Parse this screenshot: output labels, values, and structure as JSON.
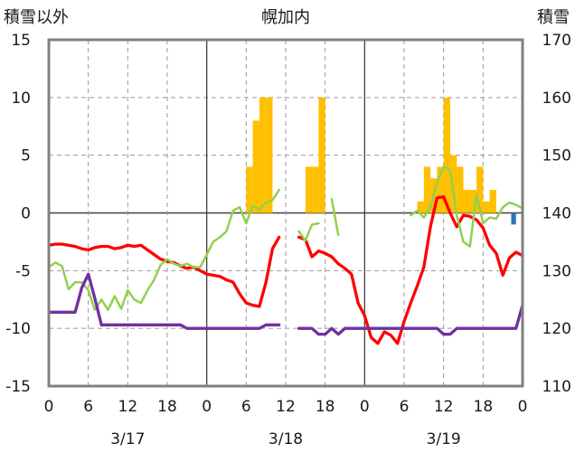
{
  "chart_data": {
    "type": "bar+line",
    "title": "幌加内",
    "left_axis_title": "積雪以外",
    "right_axis_title": "積雪",
    "left_ylim": [
      -15,
      15
    ],
    "left_ticks": [
      "15",
      "10",
      "5",
      "0",
      "-5",
      "-10",
      "-15"
    ],
    "right_ylim": [
      110,
      170
    ],
    "right_ticks": [
      "170",
      "160",
      "150",
      "140",
      "130",
      "120",
      "110"
    ],
    "xlim_hours": [
      0,
      72
    ],
    "x_tick_hours": [
      0,
      6,
      12,
      18,
      24,
      30,
      36,
      42,
      48,
      54,
      60,
      66,
      72
    ],
    "x_tick_labels": [
      "0",
      "6",
      "12",
      "18",
      "0",
      "6",
      "12",
      "18",
      "0",
      "6",
      "12",
      "18",
      "0"
    ],
    "date_labels": [
      {
        "text": "3/17",
        "hour": 12
      },
      {
        "text": "3/18",
        "hour": 36
      },
      {
        "text": "3/19",
        "hour": 60
      }
    ],
    "grid": true,
    "colors": {
      "precip_bar": "#FFC000",
      "temperature": "#FF0000",
      "wind_green": "#92D050",
      "purple": "#7030A0",
      "blue_bar": "#2E75B6",
      "frame": "#808080"
    },
    "bars_orange": [
      {
        "h": 31,
        "v": 4
      },
      {
        "h": 32,
        "v": 8
      },
      {
        "h": 33,
        "v": 10
      },
      {
        "h": 34,
        "v": 10
      },
      {
        "h": 40,
        "v": 4
      },
      {
        "h": 41,
        "v": 4
      },
      {
        "h": 42,
        "v": 10
      },
      {
        "h": 57,
        "v": 1
      },
      {
        "h": 58,
        "v": 4
      },
      {
        "h": 59,
        "v": 3
      },
      {
        "h": 60,
        "v": 4
      },
      {
        "h": 61,
        "v": 10
      },
      {
        "h": 62,
        "v": 5
      },
      {
        "h": 63,
        "v": 4
      },
      {
        "h": 64,
        "v": 2
      },
      {
        "h": 65,
        "v": 2
      },
      {
        "h": 66,
        "v": 4
      },
      {
        "h": 67,
        "v": 1
      },
      {
        "h": 68,
        "v": 2
      }
    ],
    "bars_blue": [
      {
        "h": 71,
        "v": -1
      }
    ],
    "series": [
      {
        "color_key": "temperature",
        "segments": [
          [
            [
              0,
              -2.8
            ],
            [
              1,
              -2.7
            ],
            [
              2,
              -2.7
            ],
            [
              3,
              -2.8
            ],
            [
              4,
              -2.9
            ],
            [
              5,
              -3.1
            ],
            [
              6,
              -3.2
            ],
            [
              7,
              -3.0
            ],
            [
              8,
              -2.9
            ],
            [
              9,
              -2.9
            ],
            [
              10,
              -3.1
            ],
            [
              11,
              -3.0
            ],
            [
              12,
              -2.8
            ],
            [
              13,
              -2.9
            ],
            [
              14,
              -2.8
            ],
            [
              15,
              -3.2
            ],
            [
              16,
              -3.6
            ],
            [
              17,
              -4.0
            ],
            [
              18,
              -4.2
            ],
            [
              19,
              -4.3
            ],
            [
              20,
              -4.6
            ],
            [
              21,
              -4.8
            ],
            [
              22,
              -4.7
            ],
            [
              23,
              -5.0
            ],
            [
              24,
              -5.3
            ],
            [
              25,
              -5.4
            ],
            [
              26,
              -5.5
            ],
            [
              27,
              -5.8
            ],
            [
              28,
              -6.0
            ],
            [
              29,
              -7.0
            ],
            [
              30,
              -7.8
            ],
            [
              31,
              -8.0
            ],
            [
              32,
              -8.1
            ],
            [
              33,
              -6.0
            ],
            [
              34,
              -3.1
            ],
            [
              35,
              -2.1
            ]
          ],
          [
            [
              38,
              -2.1
            ],
            [
              39,
              -2.3
            ],
            [
              40,
              -3.8
            ],
            [
              41,
              -3.3
            ],
            [
              42,
              -3.5
            ],
            [
              43,
              -3.8
            ],
            [
              44,
              -4.4
            ],
            [
              45,
              -4.8
            ],
            [
              46,
              -5.3
            ],
            [
              47,
              -7.8
            ],
            [
              48,
              -8.9
            ],
            [
              49,
              -10.8
            ],
            [
              50,
              -11.3
            ],
            [
              51,
              -10.3
            ],
            [
              52,
              -10.6
            ],
            [
              53,
              -11.3
            ],
            [
              54,
              -9.4
            ],
            [
              55,
              -7.8
            ],
            [
              56,
              -6.3
            ],
            [
              57,
              -4.7
            ],
            [
              58,
              -1.2
            ],
            [
              59,
              1.3
            ],
            [
              60,
              1.4
            ],
            [
              61,
              0.0
            ],
            [
              62,
              -1.2
            ],
            [
              63,
              -0.2
            ],
            [
              64,
              -0.3
            ],
            [
              65,
              -0.6
            ],
            [
              66,
              -1.3
            ],
            [
              67,
              -2.8
            ],
            [
              68,
              -3.5
            ],
            [
              69,
              -5.4
            ],
            [
              70,
              -3.9
            ],
            [
              71,
              -3.4
            ],
            [
              72,
              -3.7
            ]
          ]
        ]
      },
      {
        "color_key": "wind_green",
        "segments": [
          [
            [
              0,
              -4.7
            ],
            [
              1,
              -4.3
            ],
            [
              2,
              -4.6
            ],
            [
              3,
              -6.6
            ],
            [
              4,
              -6.0
            ],
            [
              5,
              -6.0
            ],
            [
              6,
              -6.7
            ],
            [
              7,
              -8.4
            ],
            [
              8,
              -7.5
            ],
            [
              9,
              -8.4
            ],
            [
              10,
              -7.2
            ],
            [
              11,
              -8.3
            ],
            [
              12,
              -6.7
            ],
            [
              13,
              -7.5
            ],
            [
              14,
              -7.8
            ],
            [
              15,
              -6.7
            ],
            [
              16,
              -5.8
            ],
            [
              17,
              -4.5
            ],
            [
              18,
              -4.0
            ],
            [
              19,
              -4.4
            ],
            [
              20,
              -4.6
            ],
            [
              21,
              -4.4
            ],
            [
              22,
              -4.7
            ],
            [
              23,
              -4.7
            ],
            [
              24,
              -3.6
            ],
            [
              25,
              -2.5
            ],
            [
              26,
              -2.1
            ],
            [
              27,
              -1.6
            ],
            [
              28,
              0.2
            ],
            [
              29,
              0.5
            ],
            [
              30,
              -0.9
            ],
            [
              31,
              0.6
            ],
            [
              32,
              0.3
            ],
            [
              33,
              0.9
            ],
            [
              34,
              1.1
            ],
            [
              35,
              2.0
            ]
          ],
          [
            [
              38,
              -1.6
            ],
            [
              39,
              -2.4
            ],
            [
              40,
              -1.0
            ],
            [
              41,
              -0.9
            ]
          ],
          [
            [
              43,
              1.2
            ],
            [
              44,
              -1.9
            ]
          ],
          [
            [
              55,
              -0.2
            ],
            [
              56,
              0.2
            ],
            [
              57,
              -0.4
            ],
            [
              58,
              0.5
            ],
            [
              59,
              2.6
            ],
            [
              60,
              4.0
            ],
            [
              61,
              3.7
            ],
            [
              62,
              -0.2
            ],
            [
              63,
              -2.5
            ],
            [
              64,
              -2.9
            ],
            [
              65,
              1.6
            ],
            [
              66,
              -0.9
            ],
            [
              67,
              -0.4
            ],
            [
              68,
              -0.5
            ],
            [
              69,
              0.5
            ],
            [
              70,
              0.9
            ],
            [
              71,
              0.7
            ],
            [
              72,
              0.4
            ]
          ]
        ]
      },
      {
        "color_key": "purple",
        "segments": [
          [
            [
              0,
              -8.6
            ],
            [
              1,
              -8.6
            ],
            [
              2,
              -8.6
            ],
            [
              3,
              -8.6
            ],
            [
              4,
              -8.6
            ],
            [
              5,
              -6.5
            ],
            [
              6,
              -5.3
            ],
            [
              7,
              -7.4
            ],
            [
              8,
              -9.7
            ],
            [
              9,
              -9.7
            ],
            [
              10,
              -9.7
            ],
            [
              11,
              -9.7
            ],
            [
              12,
              -9.7
            ],
            [
              13,
              -9.7
            ],
            [
              14,
              -9.7
            ],
            [
              15,
              -9.7
            ],
            [
              16,
              -9.7
            ],
            [
              17,
              -9.7
            ],
            [
              18,
              -9.7
            ],
            [
              19,
              -9.7
            ],
            [
              20,
              -9.7
            ],
            [
              21,
              -10.0
            ],
            [
              22,
              -10.0
            ],
            [
              23,
              -10.0
            ],
            [
              24,
              -10.0
            ],
            [
              25,
              -10.0
            ],
            [
              26,
              -10.0
            ],
            [
              27,
              -10.0
            ],
            [
              28,
              -10.0
            ],
            [
              29,
              -10.0
            ],
            [
              30,
              -10.0
            ],
            [
              31,
              -10.0
            ],
            [
              32,
              -10.0
            ],
            [
              33,
              -9.7
            ],
            [
              34,
              -9.7
            ],
            [
              35,
              -9.7
            ]
          ],
          [
            [
              38,
              -10.0
            ],
            [
              39,
              -10.0
            ],
            [
              40,
              -10.0
            ],
            [
              41,
              -10.5
            ],
            [
              42,
              -10.5
            ],
            [
              43,
              -10.0
            ],
            [
              44,
              -10.5
            ],
            [
              45,
              -10.0
            ],
            [
              46,
              -10.0
            ],
            [
              47,
              -10.0
            ],
            [
              48,
              -10.0
            ],
            [
              49,
              -10.0
            ],
            [
              50,
              -10.0
            ],
            [
              51,
              -10.0
            ],
            [
              52,
              -10.0
            ],
            [
              53,
              -10.0
            ],
            [
              54,
              -10.0
            ],
            [
              55,
              -10.0
            ],
            [
              56,
              -10.0
            ],
            [
              57,
              -10.0
            ],
            [
              58,
              -10.0
            ],
            [
              59,
              -10.0
            ],
            [
              60,
              -10.5
            ],
            [
              61,
              -10.5
            ],
            [
              62,
              -10.0
            ],
            [
              63,
              -10.0
            ],
            [
              64,
              -10.0
            ],
            [
              65,
              -10.0
            ],
            [
              66,
              -10.0
            ],
            [
              67,
              -10.0
            ],
            [
              68,
              -10.0
            ],
            [
              69,
              -10.0
            ],
            [
              70,
              -10.0
            ],
            [
              71,
              -10.0
            ],
            [
              72,
              -8.0
            ]
          ]
        ]
      }
    ]
  }
}
